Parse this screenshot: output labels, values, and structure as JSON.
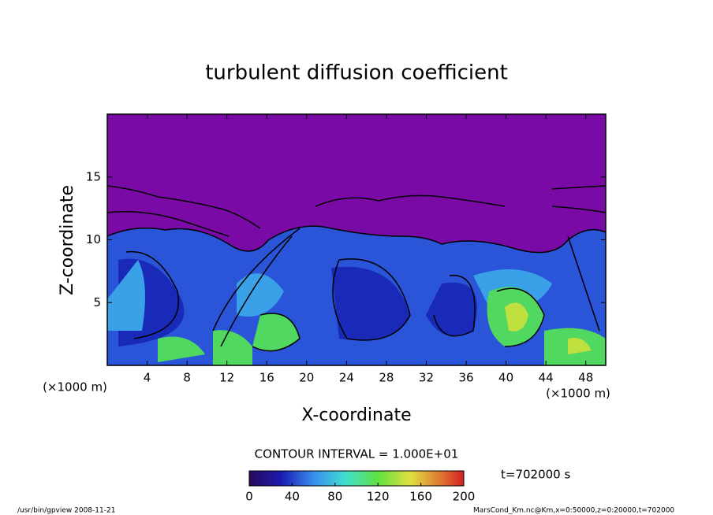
{
  "chart_data": {
    "type": "contour",
    "title": "turbulent diffusion coefficient",
    "x_label": "X-coordinate",
    "y_label": "Z-coordinate",
    "unit_label": "(×1000 m)",
    "xlim": [
      0,
      50
    ],
    "xticks": [
      4,
      8,
      12,
      16,
      20,
      24,
      28,
      32,
      36,
      40,
      44,
      48
    ],
    "ylim": [
      0,
      20
    ],
    "yticks": [
      5,
      10,
      15
    ],
    "contour_interval_label": "CONTOUR INTERVAL = 1.000E+01",
    "time_label": "t=702000 s",
    "colorbar": {
      "lim": [
        0,
        200
      ],
      "ticks": [
        0,
        40,
        80,
        120,
        160,
        200
      ]
    },
    "footer_left": "/usr/bin/gpview   2008-11-21",
    "footer_right": "MarsCond_Km.nc@Km,x=0:50000,z=0:20000,t=702000"
  }
}
